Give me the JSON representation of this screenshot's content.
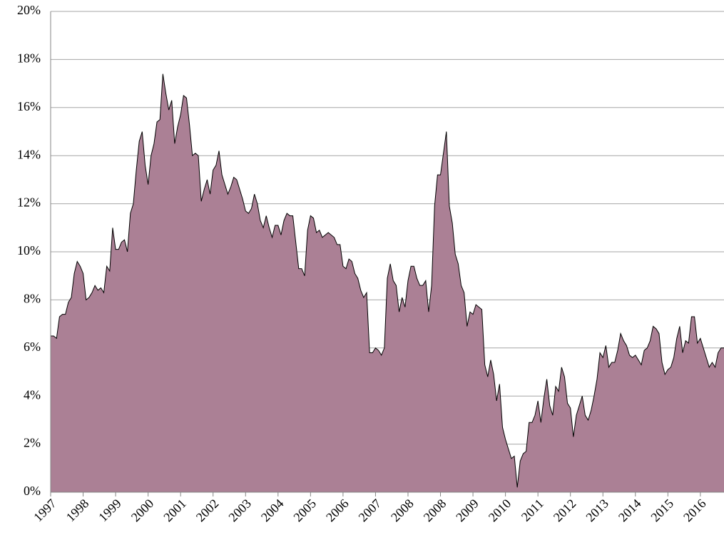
{
  "chart_data": {
    "type": "area",
    "categories": [
      "1997",
      null,
      null,
      null,
      null,
      null,
      null,
      null,
      null,
      null,
      null,
      "1998",
      null,
      null,
      null,
      null,
      null,
      null,
      null,
      null,
      null,
      null,
      "1999",
      null,
      null,
      null,
      null,
      null,
      null,
      null,
      null,
      null,
      null,
      "2000",
      null,
      null,
      null,
      null,
      null,
      null,
      null,
      null,
      null,
      null,
      "2001",
      null,
      null,
      null,
      null,
      null,
      null,
      null,
      null,
      null,
      null,
      "2002",
      null,
      null,
      null,
      null,
      null,
      null,
      null,
      null,
      null,
      null,
      "2003",
      null,
      null,
      null,
      null,
      null,
      null,
      null,
      null,
      null,
      null,
      "2004",
      null,
      null,
      null,
      null,
      null,
      null,
      null,
      null,
      null,
      null,
      "2005",
      null,
      null,
      null,
      null,
      null,
      null,
      null,
      null,
      null,
      null,
      "2006",
      null,
      null,
      null,
      null,
      null,
      null,
      null,
      null,
      null,
      null,
      "2007",
      null,
      null,
      null,
      null,
      null,
      null,
      null,
      null,
      null,
      null,
      "2008",
      null,
      null,
      null,
      null,
      null,
      null,
      null,
      null,
      null,
      null,
      "2008",
      null,
      null,
      null,
      null,
      null,
      null,
      null,
      null,
      null,
      null,
      "2009",
      null,
      null,
      null,
      null,
      null,
      null,
      null,
      null,
      null,
      null,
      "2010",
      null,
      null,
      null,
      null,
      null,
      null,
      null,
      null,
      null,
      null,
      "2011",
      null,
      null,
      null,
      null,
      null,
      null,
      null,
      null,
      null,
      null,
      "2012",
      null,
      null,
      null,
      null,
      null,
      null,
      null,
      null,
      null,
      null,
      "2013",
      null,
      null,
      null,
      null,
      null,
      null,
      null,
      null,
      null,
      null,
      "2014",
      null,
      null,
      null,
      null,
      null,
      null,
      null,
      null,
      null,
      null,
      "2015",
      null,
      null,
      null,
      null,
      null,
      null,
      null,
      null,
      null,
      null,
      "2016",
      null,
      null,
      null,
      null,
      null,
      null,
      null,
      null
    ],
    "values": [
      6.5,
      6.5,
      6.4,
      7.3,
      7.4,
      7.4,
      7.9,
      8.1,
      9.1,
      9.6,
      9.4,
      9.1,
      8.0,
      8.1,
      8.3,
      8.6,
      8.4,
      8.5,
      8.3,
      9.4,
      9.2,
      11.0,
      10.1,
      10.1,
      10.4,
      10.5,
      10.0,
      11.6,
      12.0,
      13.4,
      14.6,
      15.0,
      13.6,
      12.8,
      14.0,
      14.5,
      15.4,
      15.5,
      17.4,
      16.6,
      15.9,
      16.3,
      14.5,
      15.2,
      15.7,
      16.5,
      16.4,
      15.3,
      14.0,
      14.1,
      14.0,
      12.1,
      12.6,
      13.0,
      12.4,
      13.4,
      13.6,
      14.2,
      13.2,
      12.8,
      12.4,
      12.7,
      13.1,
      13.0,
      12.6,
      12.2,
      11.7,
      11.6,
      11.8,
      12.4,
      12.0,
      11.3,
      11.0,
      11.5,
      11.0,
      10.6,
      11.1,
      11.1,
      10.7,
      11.3,
      11.6,
      11.5,
      11.5,
      10.4,
      9.3,
      9.3,
      9.0,
      10.9,
      11.5,
      11.4,
      10.8,
      10.9,
      10.6,
      10.7,
      10.8,
      10.7,
      10.6,
      10.3,
      10.3,
      9.4,
      9.3,
      9.7,
      9.6,
      9.1,
      8.9,
      8.4,
      8.1,
      8.3,
      5.8,
      5.8,
      6.0,
      5.9,
      5.7,
      6.0,
      8.9,
      9.5,
      8.8,
      8.6,
      7.5,
      8.1,
      7.7,
      8.8,
      9.4,
      9.4,
      8.9,
      8.6,
      8.6,
      8.8,
      7.5,
      8.6,
      11.9,
      13.2,
      13.2,
      14.1,
      15.0,
      11.9,
      11.2,
      9.9,
      9.5,
      8.6,
      8.3,
      6.9,
      7.5,
      7.4,
      7.8,
      7.7,
      7.6,
      5.3,
      4.8,
      5.5,
      4.9,
      3.8,
      4.5,
      2.7,
      2.2,
      1.8,
      1.4,
      1.5,
      0.2,
      1.3,
      1.6,
      1.7,
      2.9,
      2.9,
      3.2,
      3.8,
      2.9,
      3.9,
      4.7,
      3.6,
      3.2,
      4.4,
      4.2,
      5.2,
      4.8,
      3.7,
      3.5,
      2.3,
      3.2,
      3.6,
      4.0,
      3.2,
      3.0,
      3.4,
      4.0,
      4.7,
      5.8,
      5.6,
      6.1,
      5.2,
      5.4,
      5.4,
      5.9,
      6.6,
      6.3,
      6.1,
      5.7,
      5.6,
      5.7,
      5.5,
      5.3,
      5.9,
      6.0,
      6.3,
      6.9,
      6.8,
      6.6,
      5.4,
      4.9,
      5.1,
      5.2,
      5.6,
      6.4,
      6.9,
      5.8,
      6.3,
      6.2,
      7.3,
      7.3,
      6.2,
      6.4,
      6.0,
      5.6,
      5.2,
      5.4,
      5.2,
      5.8,
      6.0,
      6.0
    ],
    "color": "#ab8095",
    "ylim": [
      0,
      20
    ],
    "yticks": [
      {
        "value": 0,
        "label": "0%"
      },
      {
        "value": 2,
        "label": "2%"
      },
      {
        "value": 4,
        "label": "4%"
      },
      {
        "value": 6,
        "label": "6%"
      },
      {
        "value": 8,
        "label": "8%"
      },
      {
        "value": 10,
        "label": "10%"
      },
      {
        "value": 12,
        "label": "12%"
      },
      {
        "value": 14,
        "label": "14%"
      },
      {
        "value": 16,
        "label": "16%"
      },
      {
        "value": 18,
        "label": "18%"
      },
      {
        "value": 20,
        "label": "20%"
      }
    ],
    "grid": true
  }
}
